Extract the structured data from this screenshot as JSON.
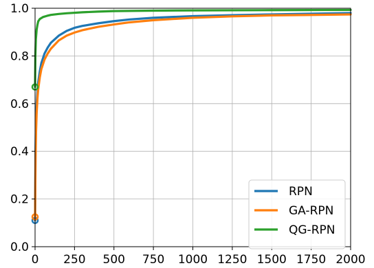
{
  "chart_data": {
    "type": "line",
    "title": "",
    "xlabel": "",
    "ylabel": "",
    "xlim": [
      0,
      2000
    ],
    "ylim": [
      0,
      1.0
    ],
    "xticks": [
      0,
      250,
      500,
      750,
      1000,
      1250,
      1500,
      1750,
      2000
    ],
    "xtick_labels": [
      "0",
      "250",
      "500",
      "750",
      "1000",
      "1250",
      "1500",
      "1750",
      "2000"
    ],
    "yticks": [
      0,
      0.2,
      0.4,
      0.6,
      0.8,
      1.0
    ],
    "ytick_labels": [
      "0.0",
      "0.2",
      "0.4",
      "0.6",
      "0.8",
      "1.0"
    ],
    "grid": true,
    "legend_position": "bottom-right",
    "series": [
      {
        "name": "RPN",
        "color": "#1f77b4",
        "start_marker": {
          "x": 0,
          "y": 0.11
        },
        "points": [
          [
            0,
            0.11
          ],
          [
            3,
            0.4
          ],
          [
            6,
            0.53
          ],
          [
            10,
            0.6
          ],
          [
            15,
            0.65
          ],
          [
            20,
            0.69
          ],
          [
            30,
            0.735
          ],
          [
            40,
            0.77
          ],
          [
            60,
            0.81
          ],
          [
            80,
            0.835
          ],
          [
            100,
            0.855
          ],
          [
            150,
            0.885
          ],
          [
            200,
            0.905
          ],
          [
            250,
            0.918
          ],
          [
            300,
            0.926
          ],
          [
            400,
            0.937
          ],
          [
            500,
            0.946
          ],
          [
            600,
            0.953
          ],
          [
            750,
            0.96
          ],
          [
            1000,
            0.967
          ],
          [
            1250,
            0.971
          ],
          [
            1500,
            0.974
          ],
          [
            1750,
            0.977
          ],
          [
            2000,
            0.98
          ]
        ]
      },
      {
        "name": "GA-RPN",
        "color": "#ff7f0e",
        "start_marker": {
          "x": 0,
          "y": 0.125
        },
        "points": [
          [
            0,
            0.125
          ],
          [
            3,
            0.36
          ],
          [
            6,
            0.48
          ],
          [
            10,
            0.56
          ],
          [
            15,
            0.62
          ],
          [
            20,
            0.66
          ],
          [
            30,
            0.71
          ],
          [
            40,
            0.745
          ],
          [
            60,
            0.785
          ],
          [
            80,
            0.81
          ],
          [
            100,
            0.83
          ],
          [
            150,
            0.865
          ],
          [
            200,
            0.885
          ],
          [
            250,
            0.898
          ],
          [
            300,
            0.908
          ],
          [
            400,
            0.922
          ],
          [
            500,
            0.932
          ],
          [
            600,
            0.941
          ],
          [
            750,
            0.95
          ],
          [
            1000,
            0.96
          ],
          [
            1250,
            0.966
          ],
          [
            1500,
            0.97
          ],
          [
            1750,
            0.972
          ],
          [
            2000,
            0.974
          ]
        ]
      },
      {
        "name": "QG-RPN",
        "color": "#2ca02c",
        "start_marker": {
          "x": 0,
          "y": 0.67
        },
        "points": [
          [
            0,
            0.67
          ],
          [
            2,
            0.8
          ],
          [
            5,
            0.87
          ],
          [
            10,
            0.91
          ],
          [
            15,
            0.93
          ],
          [
            20,
            0.945
          ],
          [
            30,
            0.955
          ],
          [
            50,
            0.963
          ],
          [
            75,
            0.968
          ],
          [
            100,
            0.972
          ],
          [
            150,
            0.976
          ],
          [
            200,
            0.979
          ],
          [
            300,
            0.983
          ],
          [
            400,
            0.986
          ],
          [
            500,
            0.988
          ],
          [
            750,
            0.99
          ],
          [
            1000,
            0.991
          ],
          [
            1500,
            0.992
          ],
          [
            2000,
            0.993
          ]
        ]
      }
    ]
  }
}
